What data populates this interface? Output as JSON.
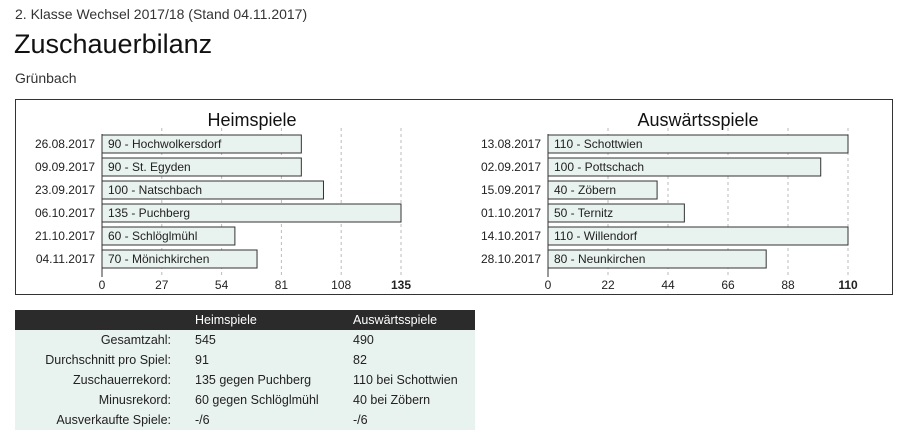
{
  "header": {
    "subtitle": "2. Klasse Wechsel 2017/18 (Stand 04.11.2017)",
    "title": "Zuschauerbilanz",
    "team": "Grünbach"
  },
  "chart_data": [
    {
      "type": "bar",
      "orientation": "horizontal",
      "title": "Heimspiele",
      "categories": [
        "26.08.2017",
        "09.09.2017",
        "23.09.2017",
        "06.10.2017",
        "21.10.2017",
        "04.11.2017"
      ],
      "bar_labels": [
        "90 - Hochwolkersdorf",
        "90 - St. Egyden",
        "100 - Natschbach",
        "135 - Puchberg",
        "60 - Schlöglmühl",
        "70 - Mönichkirchen"
      ],
      "values": [
        90,
        90,
        100,
        135,
        60,
        70
      ],
      "ticks": [
        "0",
        "27",
        "54",
        "81",
        "108",
        "135"
      ],
      "xlim": [
        0,
        135
      ],
      "grid": true
    },
    {
      "type": "bar",
      "orientation": "horizontal",
      "title": "Auswärtsspiele",
      "categories": [
        "13.08.2017",
        "02.09.2017",
        "15.09.2017",
        "01.10.2017",
        "14.10.2017",
        "28.10.2017"
      ],
      "bar_labels": [
        "110 - Schottwien",
        "100 - Pottschach",
        "40 - Zöbern",
        "50 - Ternitz",
        "110 - Willendorf",
        "80 - Neunkirchen"
      ],
      "values": [
        110,
        100,
        40,
        50,
        110,
        80
      ],
      "ticks": [
        "0",
        "22",
        "44",
        "66",
        "88",
        "110"
      ],
      "xlim": [
        0,
        110
      ],
      "grid": true
    }
  ],
  "colors": {
    "bar_fill": "#e8f2ee",
    "bar_stroke": "#333333",
    "table_header": "#2b2b2b",
    "table_row": "#e8f2ee"
  },
  "stats": {
    "headers": [
      "",
      "Heimspiele",
      "Auswärtsspiele"
    ],
    "rows": [
      [
        "Gesamtzahl:",
        "545",
        "490"
      ],
      [
        "Durchschnitt pro Spiel:",
        "91",
        "82"
      ],
      [
        "Zuschauerrekord:",
        "135 gegen Puchberg",
        "110 bei Schottwien"
      ],
      [
        "Minusrekord:",
        "60 gegen Schlöglmühl",
        "40 bei Zöbern"
      ],
      [
        "Ausverkaufte Spiele:",
        "-/6",
        "-/6"
      ]
    ]
  }
}
